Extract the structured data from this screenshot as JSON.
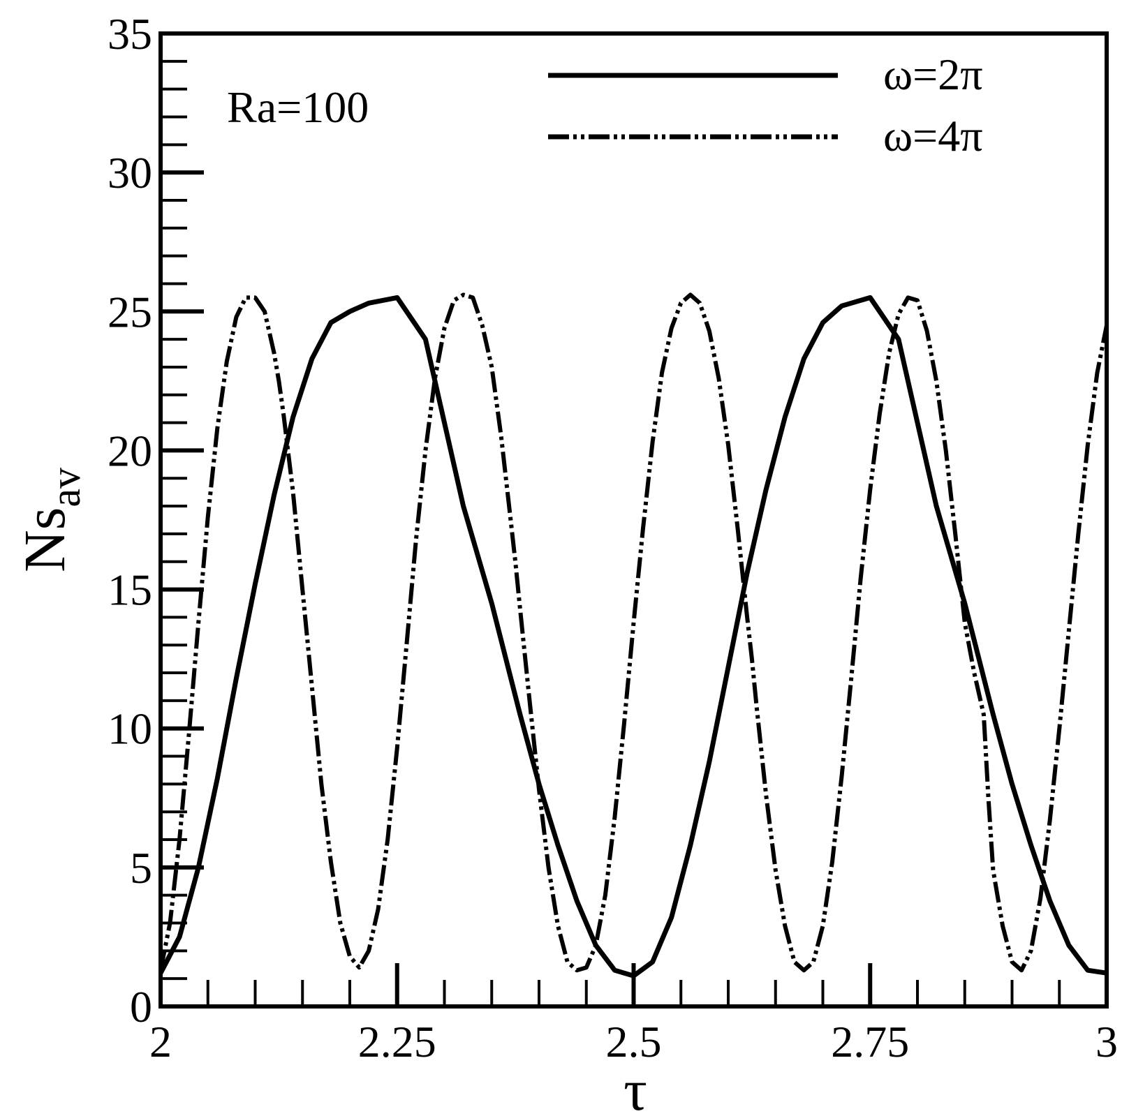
{
  "chart_data": {
    "type": "line",
    "title": "",
    "xlabel": "τ",
    "ylabel_main": "Ns",
    "ylabel_sub": "av",
    "xlim": [
      2,
      3
    ],
    "ylim": [
      0,
      35
    ],
    "grid": false,
    "legend_position": "top-right",
    "x_ticks": [
      2,
      2.25,
      2.5,
      2.75,
      3
    ],
    "x_tick_labels": [
      "2",
      "2.25",
      "2.5",
      "2.75",
      "3"
    ],
    "y_ticks": [
      0,
      5,
      10,
      15,
      20,
      25,
      30,
      35
    ],
    "y_tick_labels": [
      "0",
      "5",
      "10",
      "15",
      "20",
      "25",
      "30",
      "35"
    ],
    "annotations": [
      {
        "text": "Ra=100"
      }
    ],
    "series": [
      {
        "name": "ω=2π",
        "style": "solid",
        "x": [
          2.0,
          2.02,
          2.04,
          2.06,
          2.08,
          2.1,
          2.12,
          2.14,
          2.16,
          2.18,
          2.2,
          2.22,
          2.25,
          2.28,
          2.3,
          2.32,
          2.35,
          2.38,
          2.4,
          2.42,
          2.44,
          2.46,
          2.48,
          2.5,
          2.52,
          2.54,
          2.56,
          2.58,
          2.6,
          2.62,
          2.64,
          2.66,
          2.68,
          2.7,
          2.72,
          2.75,
          2.78,
          2.8,
          2.82,
          2.85,
          2.88,
          2.9,
          2.92,
          2.94,
          2.96,
          2.98,
          3.0
        ],
        "y": [
          1.2,
          2.5,
          5.0,
          8.2,
          11.8,
          15.2,
          18.4,
          21.2,
          23.3,
          24.6,
          25.0,
          25.3,
          25.5,
          24.0,
          21.0,
          18.0,
          14.5,
          10.5,
          8.0,
          5.8,
          3.8,
          2.2,
          1.3,
          1.1,
          1.6,
          3.2,
          5.8,
          8.8,
          12.2,
          15.6,
          18.6,
          21.2,
          23.3,
          24.6,
          25.2,
          25.5,
          24.0,
          21.0,
          18.0,
          14.5,
          10.5,
          8.0,
          5.8,
          3.8,
          2.2,
          1.3,
          1.2
        ]
      },
      {
        "name": "ω=4π",
        "style": "dash-dot-dot",
        "x": [
          2.0,
          2.01,
          2.02,
          2.03,
          2.04,
          2.05,
          2.06,
          2.07,
          2.08,
          2.09,
          2.1,
          2.11,
          2.12,
          2.125,
          2.13,
          2.14,
          2.15,
          2.16,
          2.17,
          2.18,
          2.19,
          2.2,
          2.21,
          2.22,
          2.23,
          2.24,
          2.25,
          2.26,
          2.27,
          2.28,
          2.29,
          2.3,
          2.31,
          2.32,
          2.33,
          2.34,
          2.35,
          2.36,
          2.37,
          2.375,
          2.38,
          2.39,
          2.4,
          2.41,
          2.42,
          2.43,
          2.44,
          2.45,
          2.46,
          2.47,
          2.48,
          2.49,
          2.5,
          2.51,
          2.52,
          2.53,
          2.54,
          2.55,
          2.56,
          2.57,
          2.58,
          2.59,
          2.6,
          2.61,
          2.62,
          2.625,
          2.63,
          2.64,
          2.65,
          2.66,
          2.67,
          2.68,
          2.69,
          2.7,
          2.71,
          2.72,
          2.73,
          2.74,
          2.75,
          2.76,
          2.77,
          2.78,
          2.79,
          2.8,
          2.81,
          2.82,
          2.83,
          2.84,
          2.85,
          2.86,
          2.87,
          2.875,
          2.88,
          2.89,
          2.9,
          2.91,
          2.92,
          2.93,
          2.94,
          2.95,
          2.96,
          2.97,
          2.98,
          2.99,
          3.0
        ],
        "y": [
          1.3,
          3.0,
          6.0,
          9.8,
          13.8,
          17.6,
          20.8,
          23.2,
          24.8,
          25.5,
          25.5,
          25.0,
          23.5,
          22.5,
          21.3,
          18.5,
          15.0,
          11.5,
          8.0,
          5.2,
          3.0,
          1.8,
          1.4,
          2.0,
          3.5,
          6.0,
          9.3,
          13.0,
          16.8,
          20.0,
          22.6,
          24.4,
          25.4,
          25.6,
          25.5,
          24.5,
          23.0,
          20.5,
          17.5,
          16.0,
          14.3,
          11.0,
          7.8,
          5.0,
          2.9,
          1.6,
          1.3,
          1.4,
          2.2,
          4.0,
          6.8,
          10.2,
          13.8,
          17.2,
          20.3,
          22.8,
          24.4,
          25.3,
          25.6,
          25.3,
          24.3,
          22.6,
          20.2,
          17.2,
          14.0,
          12.5,
          10.8,
          7.6,
          4.9,
          2.9,
          1.6,
          1.3,
          1.6,
          2.9,
          5.2,
          8.3,
          11.8,
          15.4,
          18.6,
          21.3,
          23.5,
          24.9,
          25.5,
          25.4,
          24.3,
          22.5,
          20.0,
          17.0,
          13.8,
          12.0,
          10.5,
          7.5,
          4.9,
          2.9,
          1.6,
          1.3,
          2.0,
          3.9,
          6.7,
          10.0,
          13.5,
          17.0,
          20.2,
          22.8,
          24.5
        ]
      }
    ]
  }
}
